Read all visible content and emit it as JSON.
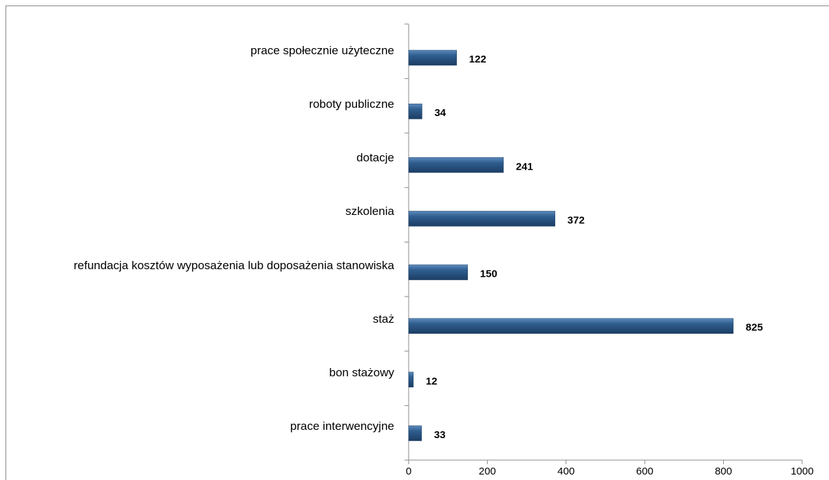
{
  "chart_data": {
    "type": "bar",
    "orientation": "horizontal",
    "categories": [
      "prace społecznie użyteczne",
      "roboty publiczne",
      "dotacje",
      "szkolenia",
      "refundacja kosztów wyposażenia lub doposażenia stanowiska",
      "staż",
      "bon stażowy",
      "prace interwencyjne"
    ],
    "values": [
      122,
      34,
      241,
      372,
      150,
      825,
      12,
      33
    ],
    "color": "#2f5e8f",
    "xlim": [
      0,
      1000
    ],
    "xticks": [
      0,
      200,
      400,
      600,
      800,
      1000
    ],
    "grid": false
  }
}
